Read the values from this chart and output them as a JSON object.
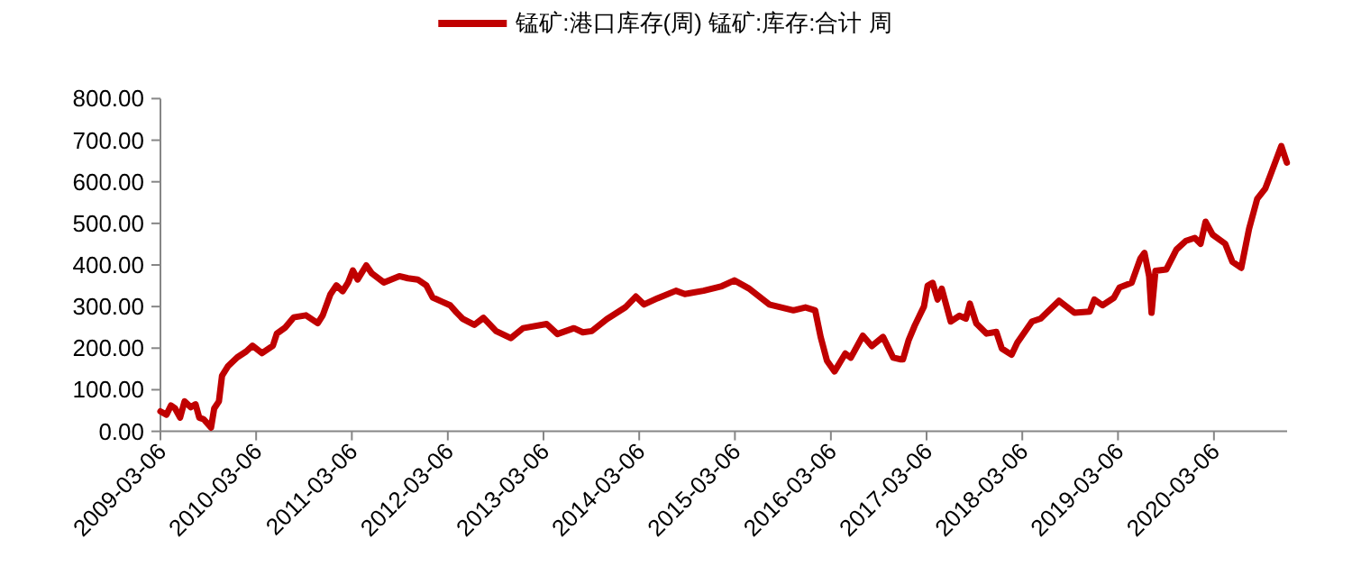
{
  "chart_data": {
    "type": "line",
    "legend": "top",
    "grid": false,
    "line_style": "solid",
    "xlim": [
      "2009-03-06",
      "2020-12-10"
    ],
    "xticks": [
      "2009-03-06",
      "2010-03-06",
      "2011-03-06",
      "2012-03-06",
      "2013-03-06",
      "2014-03-06",
      "2015-03-06",
      "2016-03-06",
      "2017-03-06",
      "2018-03-06",
      "2019-03-06",
      "2020-03-06"
    ],
    "ylim": [
      0,
      800
    ],
    "yticks": [
      {
        "value": 0,
        "label": "0.00"
      },
      {
        "value": 100,
        "label": "100.00"
      },
      {
        "value": 200,
        "label": "200.00"
      },
      {
        "value": 300,
        "label": "300.00"
      },
      {
        "value": 400,
        "label": "400.00"
      },
      {
        "value": 500,
        "label": "500.00"
      },
      {
        "value": 600,
        "label": "600.00"
      },
      {
        "value": 700,
        "label": "700.00"
      },
      {
        "value": 800,
        "label": "800.00"
      }
    ],
    "series": [
      {
        "name": "锰矿:港口库存(周) 锰矿:库存:合计 周",
        "color": "#c00000",
        "x": [
          "2009-03-06",
          "2009-03-29",
          "2009-04-15",
          "2009-05-01",
          "2009-05-20",
          "2009-06-06",
          "2009-06-30",
          "2009-07-18",
          "2009-08-01",
          "2009-08-18",
          "2009-09-15",
          "2009-09-27",
          "2009-10-15",
          "2009-10-27",
          "2009-11-18",
          "2009-12-24",
          "2010-01-27",
          "2010-02-20",
          "2010-03-28",
          "2010-05-09",
          "2010-05-24",
          "2010-06-24",
          "2010-07-27",
          "2010-09-12",
          "2010-10-27",
          "2010-11-15",
          "2010-12-14",
          "2011-01-06",
          "2011-01-30",
          "2011-02-20",
          "2011-03-10",
          "2011-03-28",
          "2011-04-30",
          "2011-05-21",
          "2011-07-06",
          "2011-09-03",
          "2011-10-06",
          "2011-11-12",
          "2011-12-15",
          "2012-01-08",
          "2012-02-12",
          "2012-03-15",
          "2012-04-08",
          "2012-05-01",
          "2012-06-15",
          "2012-07-20",
          "2012-09-06",
          "2012-11-01",
          "2012-12-18",
          "2013-03-18",
          "2013-04-28",
          "2013-06-30",
          "2013-08-03",
          "2013-09-06",
          "2013-11-03",
          "2014-01-12",
          "2014-02-21",
          "2014-03-24",
          "2014-05-15",
          "2014-07-24",
          "2014-08-27",
          "2014-11-06",
          "2015-01-15",
          "2015-03-04",
          "2015-04-27",
          "2015-07-15",
          "2015-10-15",
          "2015-11-30",
          "2016-01-06",
          "2016-01-27",
          "2016-02-20",
          "2016-03-20",
          "2016-04-30",
          "2016-05-21",
          "2016-07-06",
          "2016-08-09",
          "2016-09-21",
          "2016-10-30",
          "2016-11-28",
          "2016-12-06",
          "2016-12-28",
          "2017-01-21",
          "2017-02-24",
          "2017-03-10",
          "2017-03-29",
          "2017-04-17",
          "2017-05-03",
          "2017-06-06",
          "2017-07-10",
          "2017-08-03",
          "2017-08-18",
          "2017-09-12",
          "2017-10-21",
          "2017-11-27",
          "2017-12-18",
          "2018-01-24",
          "2018-02-15",
          "2018-04-12",
          "2018-05-15",
          "2018-07-24",
          "2018-09-21",
          "2018-11-18",
          "2018-12-06",
          "2019-01-06",
          "2019-02-18",
          "2019-03-12",
          "2019-04-27",
          "2019-05-30",
          "2019-06-15",
          "2019-07-03",
          "2019-07-12",
          "2019-07-27",
          "2019-09-06",
          "2019-10-15",
          "2019-11-20",
          "2019-12-24",
          "2020-01-15",
          "2020-02-03",
          "2020-03-01",
          "2020-04-18",
          "2020-05-15",
          "2020-06-18",
          "2020-07-18",
          "2020-08-18",
          "2020-09-18",
          "2020-10-12",
          "2020-11-18",
          "2020-12-09"
        ],
        "values": [
          48,
          40,
          62,
          55,
          33,
          72,
          58,
          65,
          33,
          29,
          9,
          55,
          72,
          134,
          156,
          178,
          192,
          206,
          188,
          206,
          235,
          249,
          274,
          279,
          260,
          279,
          329,
          351,
          337,
          358,
          387,
          365,
          399,
          380,
          358,
          373,
          368,
          365,
          351,
          322,
          312,
          303,
          286,
          271,
          256,
          273,
          241,
          224,
          248,
          258,
          234,
          248,
          238,
          241,
          270,
          298,
          324,
          305,
          320,
          338,
          330,
          338,
          349,
          363,
          344,
          305,
          291,
          298,
          291,
          227,
          170,
          144,
          187,
          177,
          230,
          205,
          227,
          177,
          173,
          173,
          220,
          256,
          300,
          350,
          357,
          317,
          343,
          264,
          278,
          271,
          307,
          259,
          235,
          239,
          199,
          184,
          213,
          264,
          271,
          314,
          285,
          288,
          317,
          303,
          321,
          346,
          357,
          415,
          429,
          372,
          285,
          386,
          389,
          437,
          458,
          465,
          451,
          504,
          473,
          451,
          408,
          393,
          487,
          559,
          584,
          624,
          686,
          646
        ]
      }
    ]
  }
}
